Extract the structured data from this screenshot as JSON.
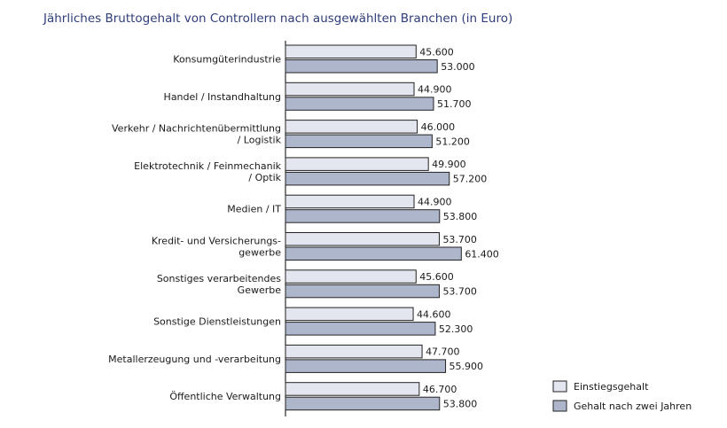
{
  "chart_data": {
    "type": "bar",
    "orientation": "horizontal",
    "title": "Jährliches Bruttogehalt von Controllern nach ausgewählten Branchen (in Euro)",
    "xlabel": "",
    "ylabel": "",
    "xlim": [
      0,
      70000
    ],
    "grid": false,
    "legend_position": "bottom-right",
    "categories": [
      [
        "Konsumgüterindustrie"
      ],
      [
        "Handel / Instandhaltung"
      ],
      [
        "Verkehr / Nachrichtenübermittlung",
        "/ Logistik"
      ],
      [
        "Elektrotechnik / Feinmechanik",
        "/ Optik"
      ],
      [
        "Medien / IT"
      ],
      [
        "Kredit- und Versicherungs-",
        "gewerbe"
      ],
      [
        "Sonstiges verarbeitendes",
        "Gewerbe"
      ],
      [
        "Sonstige Dienstleistungen"
      ],
      [
        "Metallerzeugung und -verarbeitung"
      ],
      [
        "Öffentliche Verwaltung"
      ]
    ],
    "series": [
      {
        "name": "Einstiegsgehalt",
        "color": "#e3e6ee",
        "values": [
          45600,
          44900,
          46000,
          49900,
          44900,
          53700,
          45600,
          44600,
          47700,
          46700
        ],
        "labels": [
          "45.600",
          "44.900",
          "46.000",
          "49.900",
          "44.900",
          "53.700",
          "45.600",
          "44.600",
          "47.700",
          "46.700"
        ]
      },
      {
        "name": "Gehalt nach zwei Jahren",
        "color": "#aeb6cc",
        "values": [
          53000,
          51700,
          51200,
          57200,
          53800,
          61400,
          53700,
          52300,
          55900,
          53800
        ],
        "labels": [
          "53.000",
          "51.700",
          "51.200",
          "57.200",
          "53.800",
          "61.400",
          "53.700",
          "52.300",
          "55.900",
          "53.800"
        ]
      }
    ]
  }
}
